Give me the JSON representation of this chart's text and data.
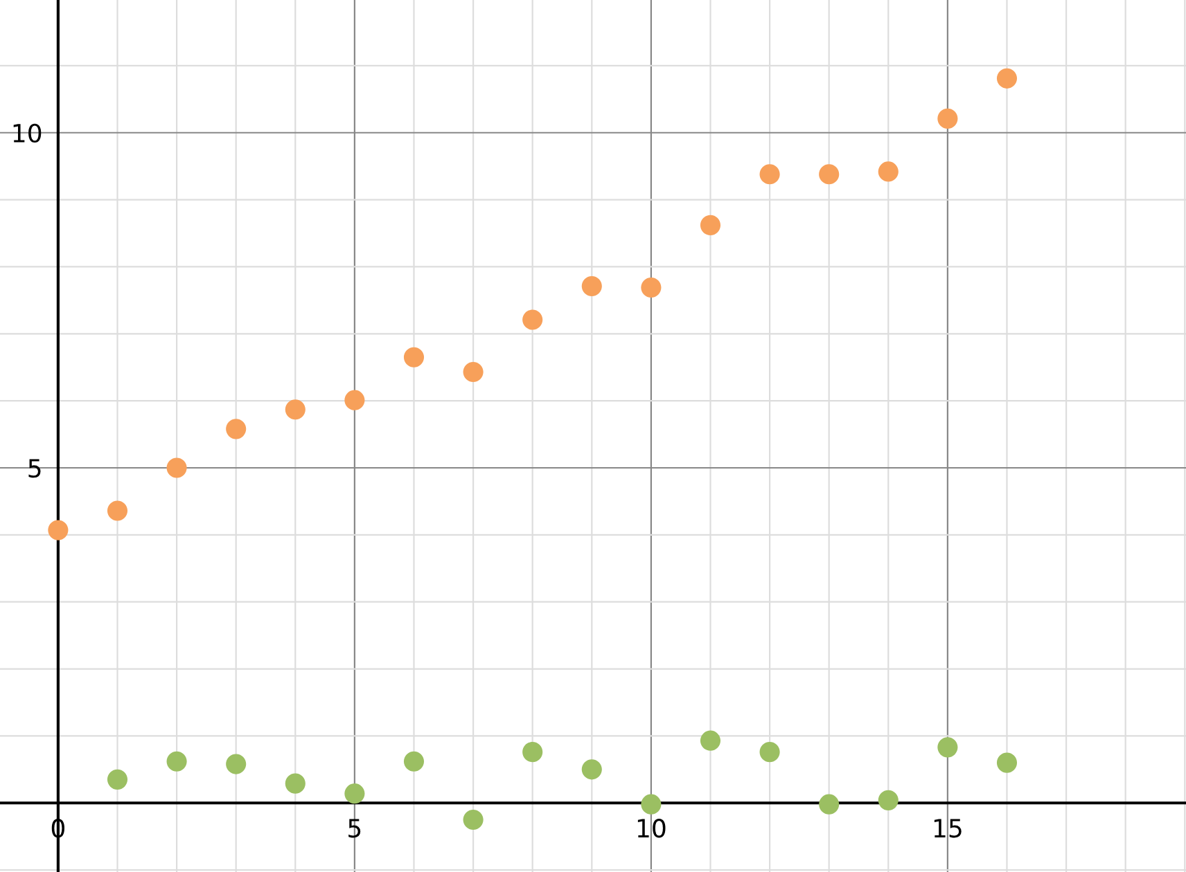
{
  "chart_data": {
    "type": "scatter",
    "x": [
      0,
      1,
      2,
      3,
      4,
      5,
      6,
      7,
      8,
      9,
      10,
      11,
      12,
      13,
      14,
      15,
      16
    ],
    "series": [
      {
        "color": "#f7a05a",
        "values": [
          4.07,
          4.36,
          5.0,
          5.58,
          5.87,
          6.01,
          6.65,
          6.43,
          7.21,
          7.71,
          7.69,
          8.62,
          9.38,
          9.38,
          9.42,
          10.21,
          10.81
        ]
      },
      {
        "color": "#9bbf62",
        "x": [
          1,
          2,
          3,
          4,
          5,
          6,
          7,
          8,
          9,
          10,
          11,
          12,
          13,
          14,
          15,
          16
        ],
        "values": [
          0.35,
          0.62,
          0.58,
          0.29,
          0.14,
          0.62,
          -0.25,
          0.76,
          0.5,
          -0.02,
          0.93,
          0.76,
          -0.02,
          0.04,
          0.83,
          0.6
        ]
      }
    ],
    "marker": "circle",
    "grid": true,
    "xlim": [
      -0.98,
      19.02
    ],
    "ylim": [
      -1.03,
      11.98
    ],
    "xticks": [
      0,
      {
        "value": 1,
        "label": null
      },
      {
        "value": 2,
        "label": null
      },
      {
        "value": 3,
        "label": null
      },
      {
        "value": 4,
        "label": null
      },
      5,
      {
        "value": 6,
        "label": null
      },
      {
        "value": 7,
        "label": null
      },
      {
        "value": 8,
        "label": null
      },
      {
        "value": 9,
        "label": null
      },
      10,
      {
        "value": 11,
        "label": null
      },
      {
        "value": 12,
        "label": null
      },
      {
        "value": 13,
        "label": null
      },
      {
        "value": 14,
        "label": null
      },
      15,
      {
        "value": 16,
        "label": null
      },
      {
        "value": 17,
        "label": null
      },
      {
        "value": 18,
        "label": null
      },
      {
        "value": 19,
        "label": null
      }
    ],
    "yticks": [
      {
        "value": -1,
        "label": null
      },
      {
        "value": 1,
        "label": null
      },
      {
        "value": 2,
        "label": null
      },
      {
        "value": 3,
        "label": null
      },
      {
        "value": 4,
        "label": null
      },
      5,
      {
        "value": 6,
        "label": null
      },
      {
        "value": 7,
        "label": null
      },
      {
        "value": 8,
        "label": null
      },
      {
        "value": 9,
        "label": null
      },
      10,
      {
        "value": 11,
        "label": null
      }
    ]
  }
}
